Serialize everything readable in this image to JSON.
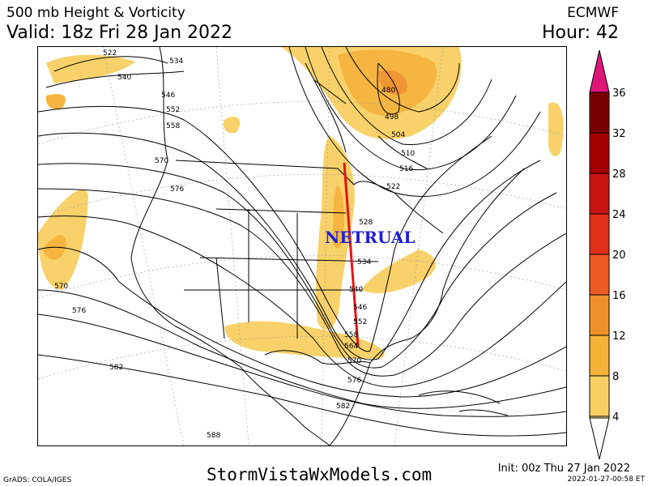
{
  "header": {
    "title": "500 mb Height & Vorticity",
    "valid": "Valid: 18z Fri 28 Jan 2022",
    "model": "ECMWF",
    "hour": "Hour: 42"
  },
  "map": {
    "annotation": "NETRUAL",
    "annotation_color": "#1f1fd6",
    "trough_line_color": "#e61414",
    "contour_labels": [
      "522",
      "534",
      "540",
      "546",
      "552",
      "558",
      "570",
      "576",
      "480",
      "498",
      "504",
      "510",
      "516",
      "522",
      "528",
      "534",
      "540",
      "546",
      "552",
      "558",
      "564",
      "570",
      "576",
      "570",
      "576",
      "582",
      "582",
      "588"
    ]
  },
  "colorbar": {
    "labels": [
      "36",
      "32",
      "28",
      "24",
      "20",
      "16",
      "12",
      "8",
      "4"
    ],
    "colors": [
      "#7a0000",
      "#a30000",
      "#c81414",
      "#e03018",
      "#ee5a24",
      "#f0902a",
      "#f5b236",
      "#f8cf63",
      "#fde89a"
    ],
    "top_color": "#e0157a"
  },
  "footer": {
    "site": "StormVistaWxModels.com",
    "grads": "GrADS: COLA/IGES",
    "init": "Init: 00z Thu 27 Jan 2022",
    "stamp": "2022-01-27-00:58 ET"
  }
}
